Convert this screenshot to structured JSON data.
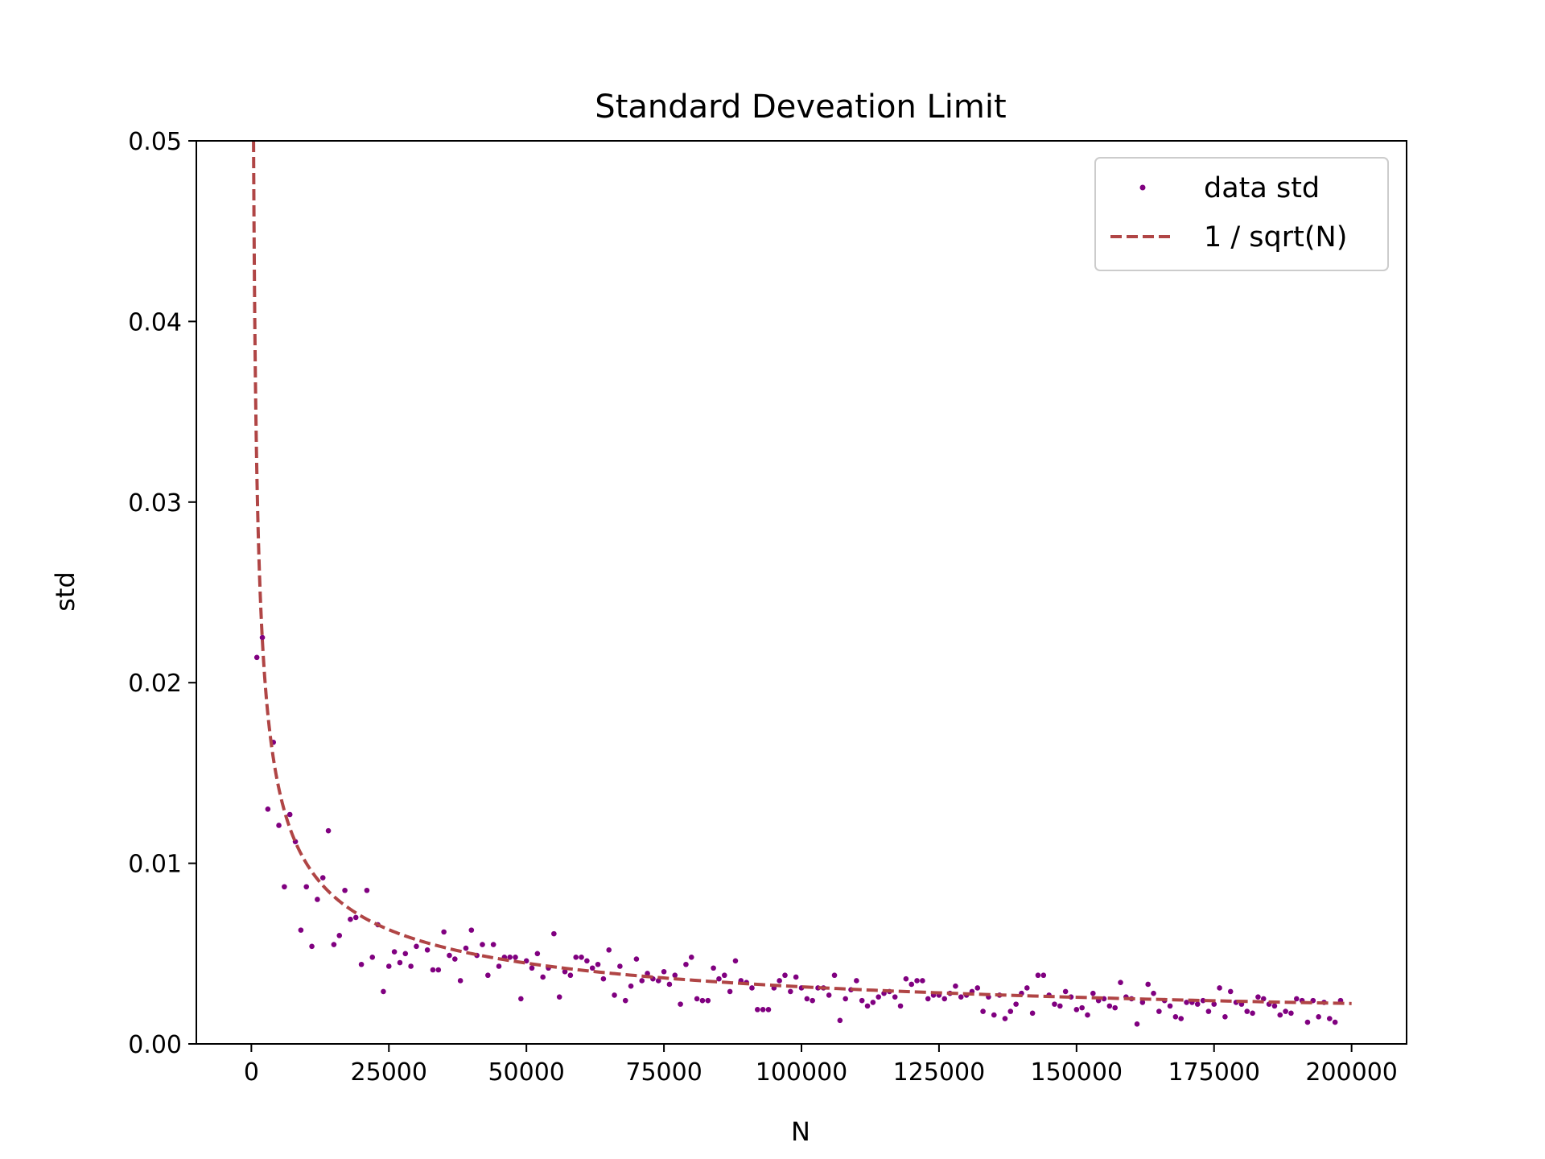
{
  "chart_data": {
    "type": "scatter",
    "title": "Standard Deveation Limit",
    "xlabel": "N",
    "ylabel": "std",
    "xlim": [
      -10000,
      210000
    ],
    "ylim": [
      0,
      0.05
    ],
    "x_ticks": [
      0,
      25000,
      50000,
      75000,
      100000,
      125000,
      150000,
      175000,
      200000
    ],
    "x_tick_labels": [
      "0",
      "25000",
      "50000",
      "75000",
      "100000",
      "125000",
      "150000",
      "175000",
      "200000"
    ],
    "y_ticks": [
      0,
      0.01,
      0.02,
      0.03,
      0.04,
      0.05
    ],
    "y_tick_labels": [
      "0.00",
      "0.01",
      "0.02",
      "0.03",
      "0.04",
      "0.05"
    ],
    "grid": false,
    "legend_position": "top-right",
    "series": [
      {
        "name": "data std",
        "type": "scatter",
        "color": "#800080",
        "points": [
          [
            1000,
            0.0214
          ],
          [
            2000,
            0.0225
          ],
          [
            3000,
            0.013
          ],
          [
            4000,
            0.0167
          ],
          [
            5000,
            0.0121
          ],
          [
            6000,
            0.0087
          ],
          [
            7000,
            0.0127
          ],
          [
            8000,
            0.0112
          ],
          [
            9000,
            0.0063
          ],
          [
            10000,
            0.0087
          ],
          [
            11000,
            0.0054
          ],
          [
            12000,
            0.008
          ],
          [
            13000,
            0.0092
          ],
          [
            14000,
            0.0118
          ],
          [
            15000,
            0.0055
          ],
          [
            16000,
            0.006
          ],
          [
            17000,
            0.0085
          ],
          [
            18000,
            0.0069
          ],
          [
            19000,
            0.007
          ],
          [
            20000,
            0.0044
          ],
          [
            21000,
            0.0085
          ],
          [
            22000,
            0.0048
          ],
          [
            23000,
            0.0066
          ],
          [
            24000,
            0.0029
          ],
          [
            25000,
            0.0043
          ],
          [
            26000,
            0.0051
          ],
          [
            27000,
            0.0045
          ],
          [
            28000,
            0.005
          ],
          [
            29000,
            0.0043
          ],
          [
            30000,
            0.0054
          ],
          [
            32000,
            0.0052
          ],
          [
            33000,
            0.0041
          ],
          [
            34000,
            0.0041
          ],
          [
            35000,
            0.0062
          ],
          [
            36000,
            0.0049
          ],
          [
            37000,
            0.0047
          ],
          [
            38000,
            0.0035
          ],
          [
            39000,
            0.0053
          ],
          [
            40000,
            0.0063
          ],
          [
            41000,
            0.0049
          ],
          [
            42000,
            0.0055
          ],
          [
            43000,
            0.0038
          ],
          [
            44000,
            0.0055
          ],
          [
            45000,
            0.0043
          ],
          [
            46000,
            0.0048
          ],
          [
            47000,
            0.0048
          ],
          [
            48000,
            0.0048
          ],
          [
            49000,
            0.0025
          ],
          [
            50000,
            0.0046
          ],
          [
            51000,
            0.0042
          ],
          [
            52000,
            0.005
          ],
          [
            53000,
            0.0037
          ],
          [
            54000,
            0.0042
          ],
          [
            55000,
            0.0061
          ],
          [
            56000,
            0.0026
          ],
          [
            57000,
            0.004
          ],
          [
            58000,
            0.0038
          ],
          [
            59000,
            0.0048
          ],
          [
            60000,
            0.0048
          ],
          [
            61000,
            0.0046
          ],
          [
            62000,
            0.0042
          ],
          [
            63000,
            0.0044
          ],
          [
            64000,
            0.0036
          ],
          [
            65000,
            0.0052
          ],
          [
            66000,
            0.0027
          ],
          [
            67000,
            0.0043
          ],
          [
            68000,
            0.0024
          ],
          [
            69000,
            0.0032
          ],
          [
            70000,
            0.0047
          ],
          [
            71000,
            0.0035
          ],
          [
            72000,
            0.0039
          ],
          [
            73000,
            0.0036
          ],
          [
            74000,
            0.0035
          ],
          [
            75000,
            0.004
          ],
          [
            76000,
            0.0033
          ],
          [
            77000,
            0.0038
          ],
          [
            78000,
            0.0022
          ],
          [
            79000,
            0.0044
          ],
          [
            80000,
            0.0048
          ],
          [
            81000,
            0.0025
          ],
          [
            82000,
            0.0024
          ],
          [
            83000,
            0.0024
          ],
          [
            84000,
            0.0042
          ],
          [
            85000,
            0.0036
          ],
          [
            86000,
            0.0038
          ],
          [
            87000,
            0.0029
          ],
          [
            88000,
            0.0046
          ],
          [
            89000,
            0.0035
          ],
          [
            90000,
            0.0034
          ],
          [
            91000,
            0.0031
          ],
          [
            92000,
            0.0019
          ],
          [
            93000,
            0.0019
          ],
          [
            94000,
            0.0019
          ],
          [
            95000,
            0.0031
          ],
          [
            96000,
            0.0035
          ],
          [
            97000,
            0.0038
          ],
          [
            98000,
            0.0029
          ],
          [
            99000,
            0.0037
          ],
          [
            100000,
            0.0031
          ],
          [
            101000,
            0.0025
          ],
          [
            102000,
            0.0024
          ],
          [
            103000,
            0.0031
          ],
          [
            104000,
            0.0031
          ],
          [
            105000,
            0.0027
          ],
          [
            106000,
            0.0038
          ],
          [
            107000,
            0.0013
          ],
          [
            108000,
            0.0025
          ],
          [
            109000,
            0.003
          ],
          [
            110000,
            0.0035
          ],
          [
            111000,
            0.0024
          ],
          [
            112000,
            0.0021
          ],
          [
            113000,
            0.0023
          ],
          [
            114000,
            0.0026
          ],
          [
            115000,
            0.0028
          ],
          [
            116000,
            0.0029
          ],
          [
            117000,
            0.0026
          ],
          [
            118000,
            0.0021
          ],
          [
            119000,
            0.0036
          ],
          [
            120000,
            0.0033
          ],
          [
            121000,
            0.0035
          ],
          [
            122000,
            0.0035
          ],
          [
            123000,
            0.0025
          ],
          [
            124000,
            0.0027
          ],
          [
            125000,
            0.0027
          ],
          [
            126000,
            0.0025
          ],
          [
            127000,
            0.0028
          ],
          [
            128000,
            0.0032
          ],
          [
            129000,
            0.0026
          ],
          [
            130000,
            0.0027
          ],
          [
            131000,
            0.0029
          ],
          [
            132000,
            0.0031
          ],
          [
            133000,
            0.0018
          ],
          [
            134000,
            0.0026
          ],
          [
            135000,
            0.0016
          ],
          [
            136000,
            0.0027
          ],
          [
            137000,
            0.0014
          ],
          [
            138000,
            0.0018
          ],
          [
            139000,
            0.0022
          ],
          [
            140000,
            0.0028
          ],
          [
            141000,
            0.0031
          ],
          [
            142000,
            0.0017
          ],
          [
            143000,
            0.0038
          ],
          [
            144000,
            0.0038
          ],
          [
            145000,
            0.0027
          ],
          [
            146000,
            0.0022
          ],
          [
            147000,
            0.0021
          ],
          [
            148000,
            0.0029
          ],
          [
            149000,
            0.0026
          ],
          [
            150000,
            0.0019
          ],
          [
            151000,
            0.002
          ],
          [
            152000,
            0.0016
          ],
          [
            153000,
            0.0028
          ],
          [
            154000,
            0.0024
          ],
          [
            155000,
            0.0025
          ],
          [
            156000,
            0.0021
          ],
          [
            157000,
            0.002
          ],
          [
            158000,
            0.0034
          ],
          [
            159000,
            0.0026
          ],
          [
            160000,
            0.0025
          ],
          [
            161000,
            0.0011
          ],
          [
            162000,
            0.0023
          ],
          [
            163000,
            0.0033
          ],
          [
            164000,
            0.0028
          ],
          [
            165000,
            0.0018
          ],
          [
            166000,
            0.0024
          ],
          [
            167000,
            0.0021
          ],
          [
            168000,
            0.0015
          ],
          [
            169000,
            0.0014
          ],
          [
            170000,
            0.0023
          ],
          [
            171000,
            0.0023
          ],
          [
            172000,
            0.0022
          ],
          [
            173000,
            0.0024
          ],
          [
            174000,
            0.0018
          ],
          [
            175000,
            0.0022
          ],
          [
            176000,
            0.0031
          ],
          [
            177000,
            0.0015
          ],
          [
            178000,
            0.0029
          ],
          [
            179000,
            0.0023
          ],
          [
            180000,
            0.0022
          ],
          [
            181000,
            0.0018
          ],
          [
            182000,
            0.0017
          ],
          [
            183000,
            0.0026
          ],
          [
            184000,
            0.0025
          ],
          [
            185000,
            0.0022
          ],
          [
            186000,
            0.0021
          ],
          [
            187000,
            0.0016
          ],
          [
            188000,
            0.0018
          ],
          [
            189000,
            0.0017
          ],
          [
            190000,
            0.0025
          ],
          [
            191000,
            0.0024
          ],
          [
            192000,
            0.0012
          ],
          [
            193000,
            0.0024
          ],
          [
            194000,
            0.0015
          ],
          [
            195000,
            0.0023
          ],
          [
            196000,
            0.0014
          ],
          [
            197000,
            0.0012
          ],
          [
            198000,
            0.0024
          ]
        ]
      },
      {
        "name": "1 / sqrt(N)",
        "type": "line",
        "style": "dashed",
        "color": "#b04545",
        "function": "1/sqrt(N)",
        "x_range": [
          400,
          200000
        ]
      }
    ]
  }
}
